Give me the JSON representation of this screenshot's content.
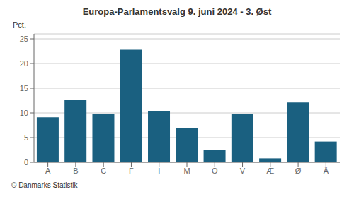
{
  "chart_data": {
    "type": "bar",
    "title": "Europa-Parlamentsvalg 9. juni 2024 - 3. Øst",
    "categories": [
      "A",
      "B",
      "C",
      "F",
      "I",
      "M",
      "O",
      "V",
      "Æ",
      "Ø",
      "Å"
    ],
    "values": [
      9.1,
      12.7,
      9.7,
      22.8,
      10.3,
      6.9,
      2.5,
      9.7,
      0.8,
      12.1,
      4.2
    ],
    "color": "#1a6080",
    "ylabel": "Pct.",
    "ylim": [
      0,
      26
    ],
    "yticks": [
      0,
      5,
      10,
      15,
      20,
      25
    ],
    "grid": true,
    "footer": "© Danmarks Statistik"
  }
}
